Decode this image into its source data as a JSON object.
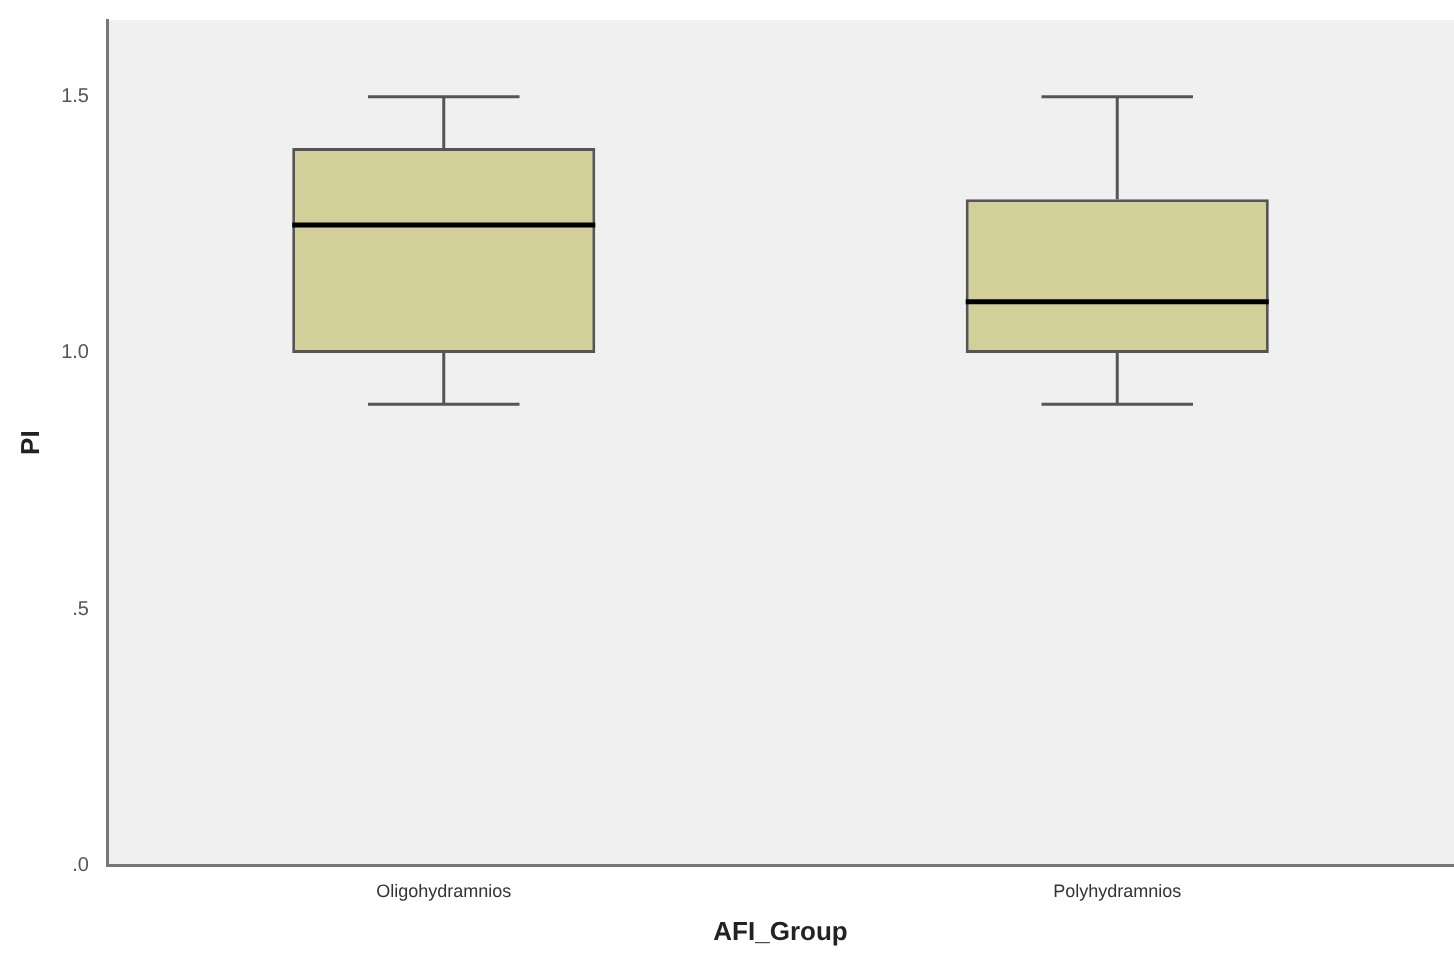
{
  "chart_data": {
    "type": "box",
    "xlabel": "AFI_Group",
    "ylabel": "PI",
    "categories": [
      "Oligohydramnios",
      "Polyhydramnios"
    ],
    "boxes": [
      {
        "low": 0.9,
        "q1": 1.0,
        "median": 1.25,
        "q3": 1.4,
        "high": 1.5
      },
      {
        "low": 0.9,
        "q1": 1.0,
        "median": 1.1,
        "q3": 1.3,
        "high": 1.5
      }
    ],
    "color": "#d3cf98",
    "ylim": [
      0,
      1.65
    ],
    "yticks": [
      {
        "value": 0,
        "label": ".0"
      },
      {
        "value": 0.5,
        "label": ".5"
      },
      {
        "value": 1,
        "label": "1.0"
      },
      {
        "value": 1.5,
        "label": "1.5"
      }
    ],
    "grid": false,
    "legend": false
  }
}
